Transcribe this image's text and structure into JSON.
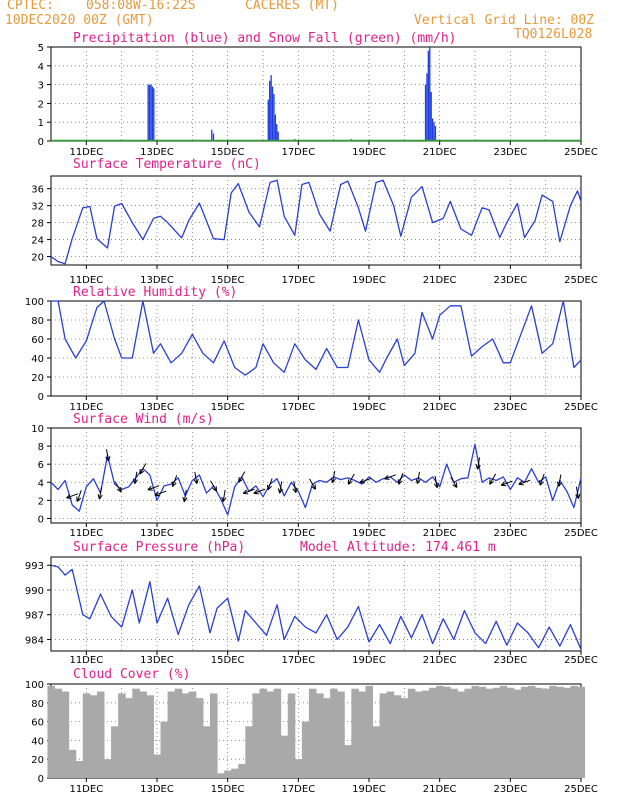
{
  "header": {
    "source": "CPTEC:",
    "location_coords": "058:08W-16:22S",
    "location_name": "CACERES (MT)",
    "run_time": "10DEC2020 00Z (GMT)",
    "grid_note": "Vertical Grid Line: 00Z",
    "product_code": "TQ0126L028"
  },
  "colors": {
    "header_orange": "#e69a3c",
    "title_magenta": "#e0218a",
    "line_blue": "#2a3fd6",
    "precip_blue": "#1f3de0",
    "snow_green": "#2ca02c",
    "cloud_gray": "#a9a9a9",
    "wind_arrow": "#000000"
  },
  "chart_data": [
    {
      "id": "precip",
      "type": "bar",
      "title": "Precipitation (blue) and Snow Fall (green) (mm/h)",
      "ylim": [
        0,
        5
      ],
      "yticks": [
        0,
        1,
        2,
        3,
        4,
        5
      ],
      "x_start": 10.0,
      "x_end": 25.0,
      "xtick_days": [
        11,
        13,
        15,
        17,
        19,
        21,
        23,
        25
      ],
      "xtick_labels": [
        "11DEC",
        "13DEC",
        "15DEC",
        "17DEC",
        "19DEC",
        "21DEC",
        "23DEC",
        "25DEC"
      ],
      "series": [
        {
          "name": "Precipitation",
          "color": "#1f3de0",
          "points": [
            [
              12.75,
              3.0
            ],
            [
              12.79,
              3.0
            ],
            [
              12.83,
              3.0
            ],
            [
              12.87,
              2.9
            ],
            [
              12.91,
              2.8
            ],
            [
              14.55,
              0.6
            ],
            [
              14.6,
              0.4
            ],
            [
              16.15,
              2.2
            ],
            [
              16.19,
              3.2
            ],
            [
              16.23,
              3.5
            ],
            [
              16.27,
              2.9
            ],
            [
              16.31,
              2.5
            ],
            [
              16.35,
              1.4
            ],
            [
              16.39,
              0.9
            ],
            [
              16.43,
              0.5
            ],
            [
              16.9,
              0.1
            ],
            [
              18.5,
              0.1
            ],
            [
              20.6,
              3.0
            ],
            [
              20.64,
              3.6
            ],
            [
              20.68,
              4.8
            ],
            [
              20.72,
              5.0
            ],
            [
              20.76,
              2.6
            ],
            [
              20.8,
              1.2
            ],
            [
              20.84,
              1.0
            ],
            [
              20.88,
              0.8
            ]
          ]
        },
        {
          "name": "Snow Fall",
          "color": "#2ca02c",
          "points": []
        }
      ]
    },
    {
      "id": "temperature",
      "type": "line",
      "title": "Surface Temperature (nC)",
      "ylim": [
        18,
        39
      ],
      "yticks": [
        20,
        24,
        28,
        32,
        36
      ],
      "x_start": 10.0,
      "x_end": 25.0,
      "xtick_days": [
        11,
        13,
        15,
        17,
        19,
        21,
        23,
        25
      ],
      "xtick_labels": [
        "11DEC",
        "13DEC",
        "15DEC",
        "17DEC",
        "19DEC",
        "21DEC",
        "23DEC",
        "25DEC"
      ],
      "series": [
        {
          "name": "",
          "color": "#2a3fd6",
          "x": [
            10.0,
            10.2,
            10.4,
            10.6,
            10.9,
            11.1,
            11.3,
            11.6,
            11.8,
            12.0,
            12.3,
            12.6,
            12.9,
            13.1,
            13.3,
            13.7,
            13.9,
            14.2,
            14.6,
            14.9,
            15.1,
            15.3,
            15.6,
            15.9,
            16.2,
            16.4,
            16.6,
            16.9,
            17.1,
            17.3,
            17.6,
            17.9,
            18.2,
            18.4,
            18.7,
            18.9,
            19.2,
            19.4,
            19.7,
            19.9,
            20.2,
            20.5,
            20.8,
            21.1,
            21.3,
            21.6,
            21.9,
            22.2,
            22.4,
            22.7,
            22.9,
            23.2,
            23.4,
            23.7,
            23.9,
            24.2,
            24.4,
            24.7,
            24.9,
            25.0
          ],
          "y": [
            20.0,
            18.8,
            18.3,
            24.2,
            31.5,
            31.8,
            24.2,
            22.0,
            31.9,
            32.5,
            28.0,
            24.0,
            29.0,
            29.5,
            28.0,
            24.4,
            28.5,
            32.6,
            24.2,
            24.0,
            35.0,
            37.2,
            30.5,
            27.0,
            37.5,
            38.0,
            29.5,
            25.0,
            37.0,
            37.5,
            30.0,
            26.0,
            37.0,
            37.8,
            31.5,
            26.0,
            37.5,
            38.0,
            32.0,
            24.8,
            34.0,
            36.5,
            28.0,
            29.0,
            33.0,
            26.5,
            25.0,
            31.5,
            31.0,
            24.5,
            28.0,
            32.5,
            24.5,
            28.5,
            34.5,
            33.0,
            23.5,
            32.0,
            35.5,
            33.0
          ]
        }
      ]
    },
    {
      "id": "humidity",
      "type": "line",
      "title": "Relative Humidity (%)",
      "ylim": [
        0,
        100
      ],
      "yticks": [
        0,
        20,
        40,
        60,
        80,
        100
      ],
      "x_start": 10.0,
      "x_end": 25.0,
      "xtick_days": [
        11,
        13,
        15,
        17,
        19,
        21,
        23,
        25
      ],
      "xtick_labels": [
        "11DEC",
        "13DEC",
        "15DEC",
        "17DEC",
        "19DEC",
        "21DEC",
        "23DEC",
        "25DEC"
      ],
      "series": [
        {
          "name": "",
          "color": "#2a3fd6",
          "x": [
            10.0,
            10.2,
            10.4,
            10.7,
            11.0,
            11.3,
            11.5,
            11.8,
            12.0,
            12.3,
            12.6,
            12.9,
            13.1,
            13.4,
            13.7,
            14.0,
            14.3,
            14.6,
            14.9,
            15.2,
            15.5,
            15.8,
            16.0,
            16.3,
            16.6,
            16.9,
            17.2,
            17.5,
            17.8,
            18.1,
            18.4,
            18.7,
            19.0,
            19.3,
            19.5,
            19.8,
            20.0,
            20.3,
            20.5,
            20.8,
            21.0,
            21.3,
            21.6,
            21.9,
            22.2,
            22.5,
            22.8,
            23.0,
            23.3,
            23.6,
            23.9,
            24.2,
            24.5,
            24.8,
            25.0
          ],
          "y": [
            100,
            100,
            60,
            40,
            58,
            93,
            100,
            60,
            40,
            40,
            100,
            45,
            55,
            35,
            45,
            65,
            45,
            35,
            58,
            30,
            22,
            30,
            55,
            35,
            25,
            55,
            38,
            28,
            50,
            30,
            30,
            80,
            38,
            25,
            40,
            60,
            32,
            45,
            88,
            60,
            85,
            95,
            95,
            42,
            52,
            60,
            35,
            35,
            65,
            95,
            45,
            55,
            100,
            30,
            38
          ]
        }
      ]
    },
    {
      "id": "wind",
      "type": "line",
      "title": "Surface Wind (m/s)",
      "ylim": [
        -0.5,
        10
      ],
      "yticks": [
        0,
        2,
        4,
        6,
        8,
        10
      ],
      "x_start": 10.0,
      "x_end": 25.0,
      "xtick_days": [
        11,
        13,
        15,
        17,
        19,
        21,
        23,
        25
      ],
      "xtick_labels": [
        "11DEC",
        "13DEC",
        "15DEC",
        "17DEC",
        "19DEC",
        "21DEC",
        "23DEC",
        "25DEC"
      ],
      "arrow_days": [
        10.6,
        10.8,
        11.4,
        11.6,
        11.9,
        12.4,
        12.6,
        12.9,
        13.1,
        13.5,
        13.8,
        14.1,
        14.6,
        14.9,
        15.4,
        15.6,
        15.9,
        16.2,
        16.5,
        16.9,
        17.4,
        18.0,
        18.5,
        18.9,
        19.6,
        19.9,
        20.4,
        20.9,
        21.4,
        22.1,
        22.5,
        22.9,
        23.4,
        23.9,
        24.4,
        24.9
      ],
      "series": [
        {
          "name": "",
          "color": "#2a3fd6",
          "x": [
            10.0,
            10.2,
            10.4,
            10.6,
            10.8,
            11.0,
            11.2,
            11.4,
            11.6,
            11.8,
            12.0,
            12.2,
            12.4,
            12.6,
            12.8,
            13.0,
            13.2,
            13.4,
            13.6,
            13.8,
            14.0,
            14.2,
            14.4,
            14.6,
            14.8,
            15.0,
            15.2,
            15.4,
            15.6,
            15.8,
            16.0,
            16.2,
            16.4,
            16.6,
            16.8,
            17.0,
            17.2,
            17.4,
            17.6,
            17.8,
            18.0,
            18.2,
            18.4,
            18.6,
            18.8,
            19.0,
            19.2,
            19.4,
            19.6,
            19.8,
            20.0,
            20.2,
            20.4,
            20.6,
            20.8,
            21.0,
            21.2,
            21.4,
            21.6,
            21.8,
            22.0,
            22.2,
            22.4,
            22.6,
            22.8,
            23.0,
            23.2,
            23.4,
            23.6,
            23.8,
            24.0,
            24.2,
            24.4,
            24.6,
            24.8,
            25.0
          ],
          "y": [
            4.0,
            3.2,
            4.2,
            1.5,
            0.8,
            3.5,
            4.4,
            2.8,
            7.0,
            3.8,
            3.2,
            3.5,
            4.5,
            5.5,
            4.8,
            2.0,
            3.6,
            3.8,
            4.5,
            2.5,
            4.2,
            4.8,
            2.8,
            3.6,
            2.2,
            0.4,
            3.5,
            4.6,
            3.0,
            3.6,
            2.4,
            3.8,
            4.4,
            2.5,
            4.0,
            3.0,
            1.2,
            3.8,
            4.2,
            4.0,
            4.6,
            4.3,
            4.5,
            4.2,
            3.8,
            4.6,
            4.0,
            4.4,
            4.6,
            4.0,
            4.8,
            4.2,
            4.5,
            4.0,
            4.6,
            3.5,
            6.0,
            4.0,
            4.4,
            4.5,
            8.2,
            4.0,
            4.5,
            4.2,
            4.6,
            3.2,
            4.5,
            4.0,
            5.5,
            4.0,
            4.6,
            2.0,
            4.2,
            3.0,
            1.2,
            4.5
          ]
        }
      ]
    },
    {
      "id": "pressure",
      "type": "line",
      "title": "Surface Pressure (hPa)",
      "annotation": "Model Altitude: 174.461  m",
      "ylim": [
        982.6,
        994.0
      ],
      "yticks": [
        984,
        987,
        990,
        993
      ],
      "x_start": 10.0,
      "x_end": 25.0,
      "xtick_days": [
        11,
        13,
        15,
        17,
        19,
        21,
        23,
        25
      ],
      "xtick_labels": [
        "11DEC",
        "13DEC",
        "15DEC",
        "17DEC",
        "19DEC",
        "21DEC",
        "23DEC",
        "25DEC"
      ],
      "series": [
        {
          "name": "",
          "color": "#2a3fd6",
          "x": [
            10.0,
            10.2,
            10.4,
            10.6,
            10.9,
            11.1,
            11.4,
            11.7,
            12.0,
            12.3,
            12.5,
            12.8,
            13.0,
            13.3,
            13.6,
            13.9,
            14.2,
            14.5,
            14.7,
            15.0,
            15.3,
            15.5,
            15.8,
            16.1,
            16.4,
            16.6,
            16.9,
            17.2,
            17.5,
            17.8,
            18.1,
            18.4,
            18.7,
            19.0,
            19.3,
            19.6,
            19.9,
            20.2,
            20.5,
            20.8,
            21.1,
            21.4,
            21.7,
            22.0,
            22.3,
            22.6,
            22.9,
            23.2,
            23.5,
            23.8,
            24.1,
            24.4,
            24.7,
            25.0
          ],
          "y": [
            993.0,
            992.8,
            991.8,
            992.5,
            987.0,
            986.5,
            989.5,
            986.8,
            985.5,
            990.0,
            986.0,
            991.0,
            986.0,
            989.0,
            984.6,
            988.2,
            990.5,
            984.8,
            987.8,
            989.0,
            983.8,
            987.5,
            986.0,
            984.5,
            988.2,
            984.0,
            986.8,
            985.5,
            984.8,
            987.0,
            984.0,
            985.5,
            988.0,
            983.7,
            985.8,
            983.5,
            986.8,
            984.2,
            987.0,
            983.5,
            986.5,
            984.0,
            987.5,
            984.8,
            983.5,
            986.2,
            983.3,
            986.0,
            984.8,
            983.0,
            985.5,
            983.2,
            985.8,
            982.8
          ]
        }
      ]
    },
    {
      "id": "cloud",
      "type": "area",
      "title": "Cloud Cover (%)",
      "ylim": [
        0,
        100
      ],
      "yticks": [
        0,
        20,
        40,
        60,
        80,
        100
      ],
      "x_start": 10.0,
      "x_end": 25.0,
      "xtick_days": [
        11,
        13,
        15,
        17,
        19,
        21,
        23,
        25
      ],
      "xtick_labels": [
        "11DEC",
        "13DEC",
        "15DEC",
        "17DEC",
        "19DEC",
        "21DEC",
        "23DEC",
        "25DEC"
      ],
      "series": [
        {
          "name": "",
          "color": "#a9a9a9",
          "x": [
            10.0,
            10.2,
            10.4,
            10.6,
            10.8,
            11.0,
            11.2,
            11.4,
            11.6,
            11.8,
            12.0,
            12.2,
            12.4,
            12.6,
            12.8,
            13.0,
            13.2,
            13.4,
            13.6,
            13.8,
            14.0,
            14.2,
            14.4,
            14.6,
            14.8,
            15.0,
            15.2,
            15.4,
            15.6,
            15.8,
            16.0,
            16.2,
            16.4,
            16.6,
            16.8,
            17.0,
            17.2,
            17.4,
            17.6,
            17.8,
            18.0,
            18.2,
            18.4,
            18.6,
            18.8,
            19.0,
            19.2,
            19.4,
            19.6,
            19.8,
            20.0,
            20.2,
            20.4,
            20.6,
            20.8,
            21.0,
            21.2,
            21.4,
            21.6,
            21.8,
            22.0,
            22.2,
            22.4,
            22.6,
            22.8,
            23.0,
            23.2,
            23.4,
            23.6,
            23.8,
            24.0,
            24.2,
            24.4,
            24.6,
            24.8,
            25.0
          ],
          "y": [
            98,
            95,
            92,
            30,
            18,
            90,
            88,
            92,
            20,
            55,
            90,
            85,
            95,
            92,
            88,
            25,
            60,
            92,
            95,
            90,
            92,
            85,
            55,
            90,
            5,
            8,
            10,
            15,
            55,
            90,
            95,
            92,
            95,
            45,
            90,
            20,
            60,
            95,
            90,
            85,
            95,
            92,
            35,
            95,
            92,
            98,
            55,
            90,
            92,
            88,
            85,
            95,
            92,
            93,
            96,
            98,
            97,
            95,
            92,
            95,
            98,
            97,
            95,
            96,
            98,
            96,
            94,
            97,
            98,
            96,
            95,
            98,
            97,
            96,
            98,
            97
          ]
        }
      ]
    }
  ]
}
